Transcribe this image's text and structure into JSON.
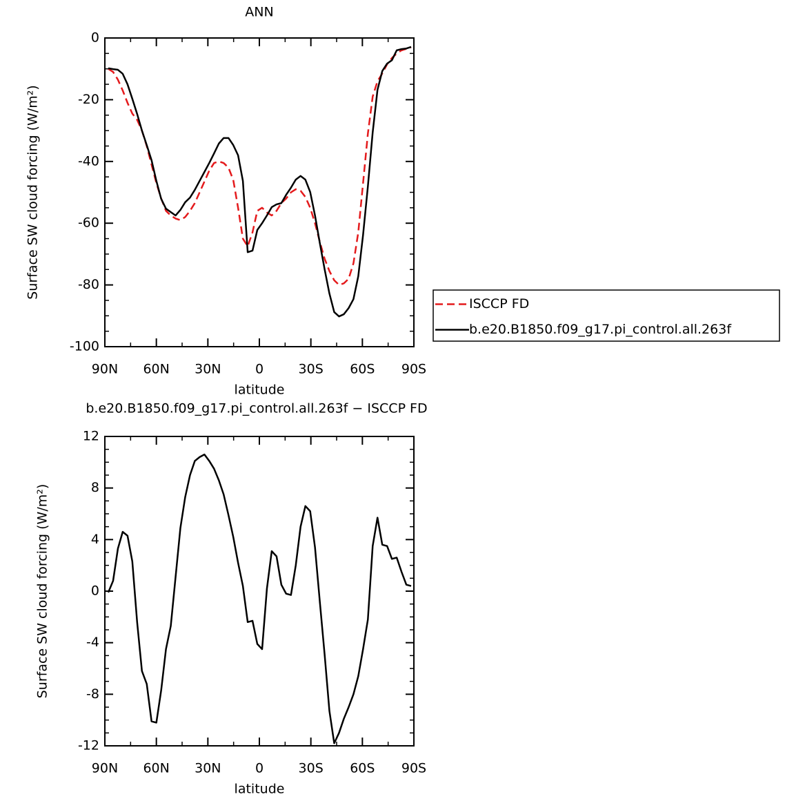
{
  "chart_data": [
    {
      "type": "line",
      "title": "ANN",
      "x_label": "latitude",
      "y_label": "Surface SW cloud forcing (W/m²)",
      "xlim": [
        90,
        -90
      ],
      "ylim": [
        -100,
        0
      ],
      "xticks": [
        {
          "value": 90,
          "label": "90N"
        },
        {
          "value": 60,
          "label": "60N"
        },
        {
          "value": 30,
          "label": "30N"
        },
        0,
        {
          "value": -30,
          "label": "30S"
        },
        {
          "value": -60,
          "label": "60S"
        },
        {
          "value": -90,
          "label": "90S"
        }
      ],
      "yticks": [
        -100,
        -80,
        -60,
        -40,
        -20,
        0
      ],
      "legend": "right",
      "x": [
        88,
        85.2,
        82.4,
        79.6,
        76.8,
        74,
        71.2,
        68.4,
        65.6,
        62.8,
        60,
        57.2,
        54.4,
        51.6,
        48.8,
        46,
        43.2,
        40.4,
        37.6,
        34.8,
        32,
        29.2,
        26.4,
        23.6,
        20.8,
        18,
        15.2,
        12.4,
        9.6,
        6.8,
        4,
        1.2,
        -1.6,
        -4.4,
        -7.2,
        -10,
        -12.8,
        -15.6,
        -18.4,
        -21.2,
        -24,
        -26.8,
        -29.6,
        -32.4,
        -35.2,
        -38,
        -40.8,
        -43.6,
        -46.4,
        -49.2,
        -52,
        -54.8,
        -57.6,
        -60.4,
        -63.2,
        -66,
        -68.8,
        -71.6,
        -74.4,
        -77.2,
        -80,
        -82.8,
        -85.6,
        -88.4
      ],
      "series": [
        {
          "name": "ISCCP FD",
          "color": "#e41a1c",
          "dashed": true,
          "values": [
            -10,
            -11,
            -13.5,
            -17,
            -21,
            -24.5,
            -26.5,
            -30,
            -35,
            -41,
            -47,
            -52,
            -56,
            -57.5,
            -58.5,
            -59,
            -58,
            -56,
            -53.5,
            -50,
            -46.5,
            -43,
            -40.5,
            -40,
            -40.5,
            -42,
            -46,
            -55,
            -65,
            -67.5,
            -63,
            -56,
            -55,
            -56.5,
            -57.5,
            -56,
            -53.5,
            -52,
            -50,
            -49,
            -49.5,
            -51.5,
            -55,
            -60,
            -66,
            -71.5,
            -75.5,
            -78.5,
            -80,
            -79.5,
            -78,
            -73,
            -63,
            -47,
            -31,
            -19,
            -14,
            -11.5,
            -8.5,
            -6.5,
            -5,
            -4,
            -3.5,
            -3
          ]
        },
        {
          "name": "b.e20.B1850.f09_g17.pi_control.all.263f",
          "color": "#000000",
          "dashed": false,
          "values": [
            -9.8,
            -10.1,
            -10.3,
            -11.6,
            -15,
            -19.7,
            -24.6,
            -30,
            -34.7,
            -39.6,
            -46.3,
            -52.1,
            -55.3,
            -56.4,
            -57.5,
            -55.7,
            -53.2,
            -51.7,
            -49.2,
            -46.3,
            -43.4,
            -40.5,
            -37.4,
            -34.2,
            -32.4,
            -32.4,
            -34.7,
            -38,
            -46.3,
            -69.4,
            -68.9,
            -62.2,
            -60,
            -57.5,
            -54.8,
            -53.9,
            -53.5,
            -50.8,
            -48.5,
            -45.9,
            -44.7,
            -45.9,
            -49.9,
            -57.5,
            -66.4,
            -74.9,
            -82.8,
            -88.8,
            -90.2,
            -89.5,
            -87.5,
            -84.6,
            -77.2,
            -63.8,
            -48.1,
            -30.6,
            -16.8,
            -10.7,
            -8.3,
            -7.2,
            -4,
            -3.6,
            -3.4,
            -2.9
          ]
        }
      ]
    },
    {
      "type": "line",
      "title": "b.e20.B1850.f09_g17.pi_control.all.263f − ISCCP FD",
      "x_label": "latitude",
      "y_label": "Surface SW cloud forcing (W/m²)",
      "xlim": [
        90,
        -90
      ],
      "ylim": [
        -12,
        12
      ],
      "xticks": [
        {
          "value": 90,
          "label": "90N"
        },
        {
          "value": 60,
          "label": "60N"
        },
        {
          "value": 30,
          "label": "30N"
        },
        0,
        {
          "value": -30,
          "label": "30S"
        },
        {
          "value": -60,
          "label": "60S"
        },
        {
          "value": -90,
          "label": "90S"
        }
      ],
      "yticks": [
        -12,
        -8,
        -4,
        0,
        4,
        8,
        12
      ],
      "x": [
        88,
        85.2,
        82.4,
        79.6,
        76.8,
        74,
        71.2,
        68.4,
        65.6,
        62.8,
        60,
        57.2,
        54.4,
        51.6,
        48.8,
        46,
        43.2,
        40.4,
        37.6,
        34.8,
        32,
        29.2,
        26.4,
        23.6,
        20.8,
        18,
        15.2,
        12.4,
        9.6,
        6.8,
        4,
        1.2,
        -1.6,
        -4.4,
        -7.2,
        -10,
        -12.8,
        -15.6,
        -18.4,
        -21.2,
        -24,
        -26.8,
        -29.6,
        -32.4,
        -35.2,
        -38,
        -40.8,
        -43.6,
        -46.4,
        -49.2,
        -52,
        -54.8,
        -57.6,
        -60.4,
        -63.2,
        -66,
        -68.8,
        -71.6,
        -74.4,
        -77.2,
        -80,
        -82.8,
        -85.6,
        -88.4
      ],
      "values": [
        -0.1,
        0.8,
        3.3,
        4.6,
        4.3,
        2.3,
        -2.4,
        -6.2,
        -7.2,
        -10.1,
        -10.2,
        -7.7,
        -4.5,
        -2.7,
        1.1,
        4.9,
        7.3,
        9,
        10.1,
        10.4,
        10.6,
        10.1,
        9.5,
        8.6,
        7.5,
        5.9,
        4.2,
        2.2,
        0.4,
        -2.4,
        -2.3,
        -4.1,
        -4.5,
        0.2,
        3.1,
        2.7,
        0.5,
        -0.2,
        -0.3,
        2,
        5,
        6.6,
        6.2,
        3.4,
        -0.8,
        -4.9,
        -9.3,
        -11.8,
        -11,
        -9.9,
        -9,
        -8,
        -6.6,
        -4.5,
        -2.2,
        3.5,
        5.7,
        3.6,
        3.5,
        2.5,
        2.6,
        1.5,
        0.5,
        0.4
      ],
      "color": "#000000"
    }
  ]
}
